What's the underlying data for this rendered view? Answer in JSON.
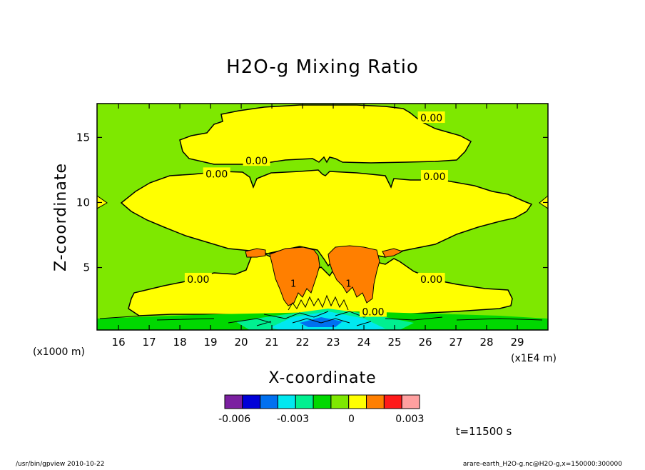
{
  "chart_data": {
    "type": "heatmap",
    "title": "H2O-g Mixing Ratio",
    "xlabel": "X-coordinate",
    "ylabel": "Z-coordinate",
    "x_unit": "(x1E4 m)",
    "y_unit": "(x1000 m)",
    "xlim": [
      15.3,
      30.0
    ],
    "ylim": [
      0.2,
      17.6
    ],
    "x_ticks": [
      16,
      17,
      18,
      19,
      20,
      21,
      22,
      23,
      24,
      25,
      26,
      27,
      28,
      29
    ],
    "y_ticks": [
      5,
      10,
      15
    ],
    "contour_labels": [
      {
        "text": "0.00",
        "x": 20.5,
        "z": 13.2
      },
      {
        "text": "0.00",
        "x": 19.2,
        "z": 12.2
      },
      {
        "text": "0.00",
        "x": 26.3,
        "z": 12.0
      },
      {
        "text": "0.00",
        "x": 26.2,
        "z": 16.5
      },
      {
        "text": "0.00",
        "x": 18.6,
        "z": 4.1
      },
      {
        "text": "0.00",
        "x": 26.2,
        "z": 4.1
      },
      {
        "text": "0.00",
        "x": 24.3,
        "z": 1.6
      }
    ],
    "contour_marks": [
      {
        "text": "1",
        "x": 21.7,
        "z": 3.8
      },
      {
        "text": "1",
        "x": 23.5,
        "z": 3.8
      }
    ],
    "regions": {
      "background": {
        "level": "0 to 0.0005"
      },
      "moist_layer": {
        "level": "0.0005 to 0.001"
      },
      "plume": {
        "level": "0.001 to 0.0015"
      },
      "surface_layer": {
        "level": "-0.003 to -0.0015"
      }
    },
    "colorbar": {
      "colors": [
        "#7b1fa0",
        "#0000d8",
        "#0070f0",
        "#00e8f0",
        "#00f090",
        "#00d800",
        "#7ee800",
        "#ffff00",
        "#ff7f00",
        "#ff1a1a",
        "#ffa0a0"
      ],
      "tick_labels": [
        "-0.006",
        "-0.003",
        "0",
        "0.003"
      ],
      "tick_positions": [
        -0.006,
        -0.003,
        0,
        0.003
      ],
      "range": [
        -0.0065,
        0.0035
      ]
    }
  },
  "annotations": {
    "time": "t=11500 s",
    "footer_left": "/usr/bin/gpview  2010-10-22",
    "footer_right": "arare-earth_H2O-g.nc@H2O-g,x=150000:300000"
  }
}
